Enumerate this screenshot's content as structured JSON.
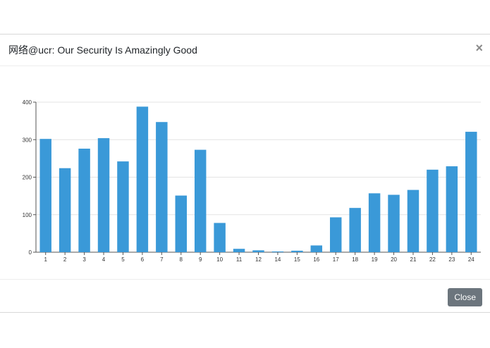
{
  "dialog": {
    "title": "网络@ucr: Our Security Is Amazingly Good",
    "close_icon": "×",
    "close_button_label": "Close"
  },
  "chart_data": {
    "type": "bar",
    "title": "",
    "xlabel": "",
    "ylabel": "",
    "ylim": [
      0,
      400
    ],
    "yticks": [
      0,
      100,
      200,
      300,
      400
    ],
    "grid": true,
    "bar_color": "#3a99d8",
    "categories": [
      "1",
      "2",
      "3",
      "4",
      "5",
      "6",
      "7",
      "8",
      "9",
      "10",
      "11",
      "12",
      "14",
      "15",
      "16",
      "17",
      "18",
      "19",
      "20",
      "21",
      "22",
      "23",
      "24"
    ],
    "values": [
      302,
      224,
      276,
      304,
      242,
      388,
      347,
      151,
      273,
      78,
      9,
      5,
      2,
      4,
      18,
      93,
      118,
      157,
      153,
      166,
      220,
      229,
      321
    ]
  }
}
